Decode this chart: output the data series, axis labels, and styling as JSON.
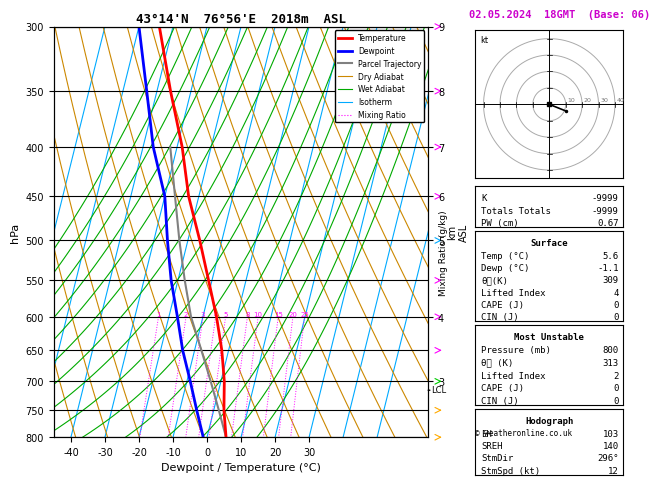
{
  "title_left": "43°14'N  76°56'E  2018m  ASL",
  "title_right": "02.05.2024  18GMT  (Base: 06)",
  "xlabel": "Dewpoint / Temperature (°C)",
  "pressure_levels": [
    300,
    350,
    400,
    450,
    500,
    550,
    600,
    650,
    700,
    750,
    800
  ],
  "pressure_min": 300,
  "pressure_max": 800,
  "temp_min": -45,
  "temp_max": 35,
  "temp_ticks": [
    -40,
    -30,
    -20,
    -10,
    0,
    10,
    20,
    30
  ],
  "km_labels": [
    [
      300,
      "9"
    ],
    [
      350,
      "8"
    ],
    [
      400,
      "7"
    ],
    [
      450,
      "6"
    ],
    [
      500,
      "5"
    ],
    [
      600,
      "4"
    ],
    [
      700,
      "3"
    ]
  ],
  "temp_profile": {
    "pressures": [
      800,
      750,
      700,
      650,
      600,
      550,
      500,
      450,
      400,
      350,
      300
    ],
    "temps": [
      5.6,
      3.0,
      1.0,
      -2.0,
      -6.0,
      -11.0,
      -16.5,
      -23.0,
      -28.5,
      -36.0,
      -44.0
    ]
  },
  "dewp_profile": {
    "pressures": [
      800,
      750,
      700,
      650,
      600,
      550,
      500,
      450,
      400,
      350,
      300
    ],
    "temps": [
      -1.1,
      -5.0,
      -9.0,
      -13.5,
      -17.5,
      -22.0,
      -26.0,
      -30.0,
      -37.0,
      -43.0,
      -50.0
    ]
  },
  "parcel_profile": {
    "pressures": [
      800,
      750,
      700,
      650,
      600,
      550,
      500,
      450,
      400
    ],
    "temps": [
      5.6,
      1.5,
      -3.0,
      -8.0,
      -13.5,
      -18.0,
      -22.5,
      -27.0,
      -32.0
    ]
  },
  "lcl_pressure": 715,
  "legend_items": [
    {
      "label": "Temperature",
      "color": "#ff0000",
      "lw": 2.0,
      "ls": "-"
    },
    {
      "label": "Dewpoint",
      "color": "#0000ff",
      "lw": 2.0,
      "ls": "-"
    },
    {
      "label": "Parcel Trajectory",
      "color": "#808080",
      "lw": 1.5,
      "ls": "-"
    },
    {
      "label": "Dry Adiabat",
      "color": "#cc8800",
      "lw": 0.8,
      "ls": "-"
    },
    {
      "label": "Wet Adiabat",
      "color": "#00aa00",
      "lw": 0.8,
      "ls": "-"
    },
    {
      "label": "Isotherm",
      "color": "#00aaff",
      "lw": 0.8,
      "ls": "-"
    },
    {
      "label": "Mixing Ratio",
      "color": "#ff00ff",
      "lw": 0.8,
      "ls": ":"
    }
  ],
  "mixing_ratio_values": [
    1,
    2,
    3,
    4,
    5,
    8,
    10,
    15,
    20,
    25
  ],
  "bg_color": "#ffffff",
  "info_K": "-9999",
  "info_TT": "-9999",
  "info_PW": "0.67",
  "info_surf_temp": "5.6",
  "info_surf_dewp": "-1.1",
  "info_surf_theta": "309",
  "info_surf_li": "4",
  "info_surf_cape": "0",
  "info_surf_cin": "0",
  "info_mu_pres": "800",
  "info_mu_theta": "313",
  "info_mu_li": "2",
  "info_mu_cape": "0",
  "info_mu_cin": "0",
  "info_eh": "103",
  "info_sreh": "140",
  "info_stmdir": "296°",
  "info_stmspd": "12",
  "copyright": "© weatheronline.co.uk",
  "wind_barbs": [
    {
      "p": 300,
      "color": "#ff00ff",
      "u": -5,
      "v": 15
    },
    {
      "p": 350,
      "color": "#ff00ff",
      "u": -3,
      "v": 10
    },
    {
      "p": 400,
      "color": "#ff00ff",
      "u": -2,
      "v": 8
    },
    {
      "p": 450,
      "color": "#ff00ff",
      "u": 0,
      "v": 6
    },
    {
      "p": 500,
      "color": "#00aaff",
      "u": 2,
      "v": 5
    },
    {
      "p": 550,
      "color": "#ff00ff",
      "u": 3,
      "v": 4
    },
    {
      "p": 600,
      "color": "#ff00ff",
      "u": 5,
      "v": 3
    },
    {
      "p": 650,
      "color": "#ff00ff",
      "u": 6,
      "v": 2
    },
    {
      "p": 700,
      "color": "#00cc00",
      "u": 8,
      "v": 0
    },
    {
      "p": 750,
      "color": "#ffaa00",
      "u": 5,
      "v": -2
    },
    {
      "p": 800,
      "color": "#ffaa00",
      "u": 3,
      "v": -3
    }
  ]
}
